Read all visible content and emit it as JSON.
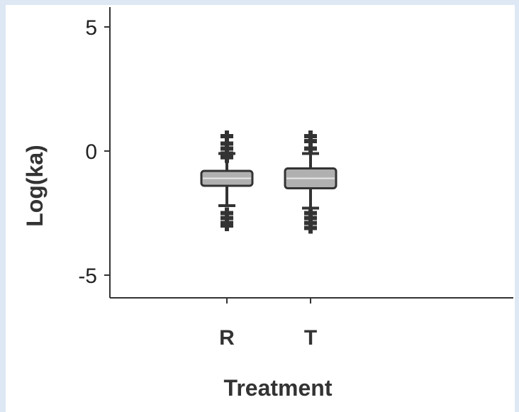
{
  "chart_data": {
    "type": "box",
    "title": "",
    "xlabel": "Treatment",
    "ylabel": "Log(ka)",
    "categories": [
      "R",
      "T"
    ],
    "yticks": [
      5,
      0,
      -5
    ],
    "ytick_labels": [
      "5",
      "0",
      "-5"
    ],
    "ylim": [
      -6,
      5.5
    ],
    "grid": false,
    "boxes": [
      {
        "category": "R",
        "whisker_low": -2.2,
        "q1": -1.4,
        "median": -1.1,
        "q3": -0.8,
        "whisker_high": -0.1,
        "outliers": [
          0.6,
          0.3,
          0.1,
          -0.1,
          -0.25,
          -2.5,
          -2.7,
          -2.9,
          -3.0
        ]
      },
      {
        "category": "T",
        "whisker_low": -2.3,
        "q1": -1.5,
        "median": -1.1,
        "q3": -0.7,
        "whisker_high": -0.1,
        "outliers": [
          0.6,
          0.4,
          0.1,
          -2.5,
          -2.7,
          -2.9,
          -3.1
        ]
      }
    ],
    "colors": {
      "box_fill": "#b0b0b0",
      "box_edge": "#333333",
      "outlier": "#333333",
      "axis": "#333333"
    }
  }
}
